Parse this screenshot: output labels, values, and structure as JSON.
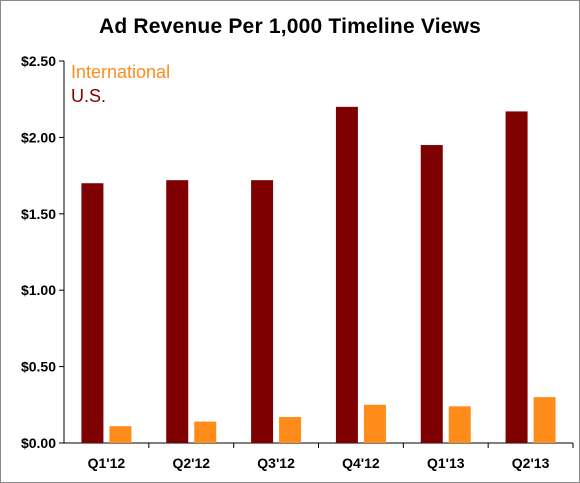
{
  "chart_data": {
    "type": "bar",
    "title": "Ad Revenue Per 1,000 Timeline Views",
    "categories": [
      "Q1'12",
      "Q2'12",
      "Q3'12",
      "Q4'12",
      "Q1'13",
      "Q2'13"
    ],
    "series": [
      {
        "name": "U.S.",
        "color": "#7f0000",
        "values": [
          1.7,
          1.72,
          1.72,
          2.2,
          1.95,
          2.17
        ]
      },
      {
        "name": "International",
        "color": "#ff8c1a",
        "values": [
          0.11,
          0.14,
          0.17,
          0.25,
          0.24,
          0.3
        ]
      }
    ],
    "ylim": [
      0,
      2.5
    ],
    "yticks": [
      0,
      0.5,
      1.0,
      1.5,
      2.0,
      2.5
    ],
    "ytick_labels": [
      "$0.00",
      "$0.50",
      "$1.00",
      "$1.50",
      "$2.00",
      "$2.50"
    ],
    "xlabel": "",
    "ylabel": "",
    "grid": false,
    "legend_position": "top-left",
    "legend_entries": [
      "International",
      "U.S."
    ]
  }
}
